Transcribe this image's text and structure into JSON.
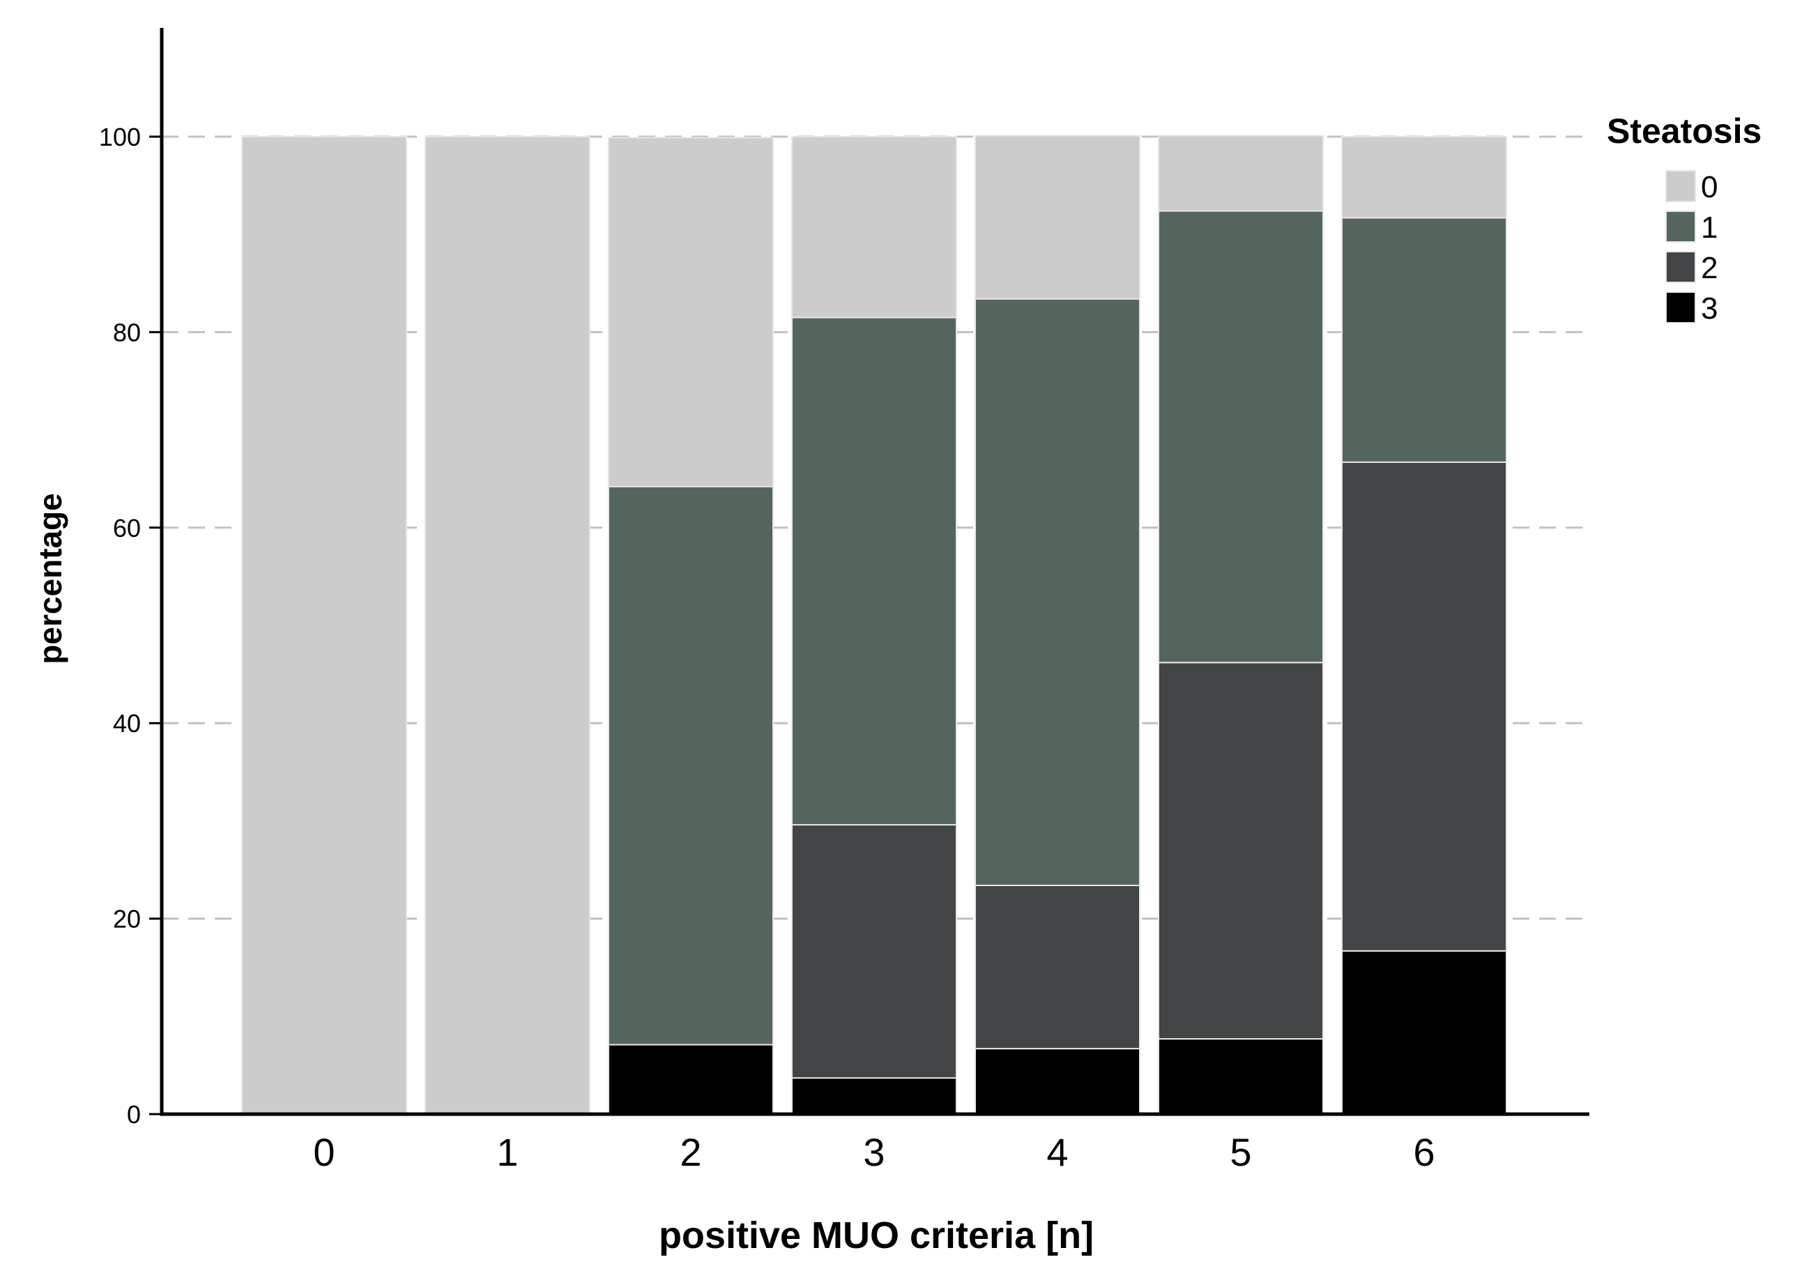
{
  "chart_data": {
    "type": "bar",
    "stacked": true,
    "xlabel": "positive MUO criteria [n]",
    "ylabel": "percentage",
    "ylim": [
      0,
      100
    ],
    "yticks": [
      0,
      20,
      40,
      60,
      80,
      100
    ],
    "grid": "horizontal dashed",
    "legend_position": "top-right",
    "legend_title": "Steatosis",
    "categories": [
      "0",
      "1",
      "2",
      "3",
      "4",
      "5",
      "6"
    ],
    "series": [
      {
        "name": "0",
        "color": "#cccccc",
        "values": [
          100,
          100,
          35.7,
          18.5,
          16.7,
          7.7,
          8.3
        ]
      },
      {
        "name": "1",
        "color": "#54655d",
        "values": [
          0,
          0,
          57.1,
          51.9,
          60.0,
          46.2,
          25.0
        ]
      },
      {
        "name": "2",
        "color": "#434446",
        "values": [
          0,
          0,
          0,
          25.9,
          16.7,
          38.5,
          50.0
        ]
      },
      {
        "name": "3",
        "color": "#000000",
        "values": [
          0,
          0,
          7.1,
          3.7,
          6.7,
          7.7,
          16.7
        ]
      }
    ]
  }
}
